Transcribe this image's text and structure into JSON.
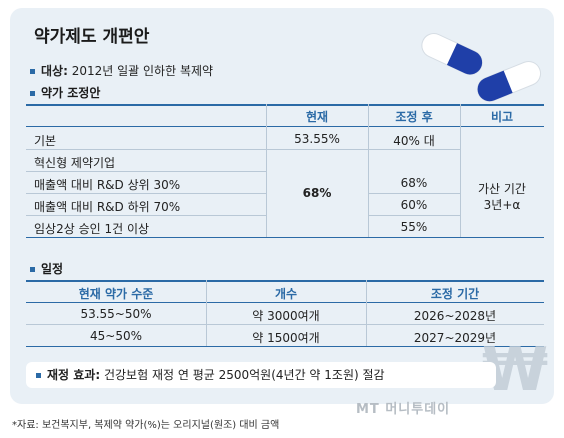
{
  "title": "약가제도 개편안",
  "target": {
    "label": "대상:",
    "text": "2012년 일괄 인하한 복제약"
  },
  "adjust_section": "약가 조정안",
  "table1": {
    "headers": {
      "current": "현재",
      "after": "조정 후",
      "note": "비고"
    },
    "rows": [
      {
        "label": "기본",
        "current": "53.55%",
        "after": "40% 대"
      },
      {
        "label": "혁신형 제약기업",
        "current": "",
        "after": ""
      },
      {
        "label": "매출액 대비 R&D 상위 30%",
        "current": "",
        "after": "68%"
      },
      {
        "label": "매출액 대비 R&D 하위 70%",
        "current": "",
        "after": "60%"
      },
      {
        "label": "임상2상 승인 1건 이상",
        "current": "",
        "after": "55%"
      }
    ],
    "merged_current": "68%",
    "note_line1": "가산 기간",
    "note_line2": "3년+α"
  },
  "schedule_section": "일정",
  "table2": {
    "headers": {
      "level": "현재 약가 수준",
      "count": "개수",
      "period": "조정 기간"
    },
    "rows": [
      {
        "level": "53.55~50%",
        "count": "약 3000여개",
        "period": "2026~2028년"
      },
      {
        "level": "45~50%",
        "count": "약 1500여개",
        "period": "2027~2029년"
      }
    ]
  },
  "effect": {
    "label": "재정 효과:",
    "text": "건강보험 재정 연 평균 2500억원(4년간 약 1조원) 절감"
  },
  "source": "*자료: 보건복지부, 복제약 약가(%)는 오리지널(원조) 대비 금액",
  "watermark_logo": "MT 머니투데이",
  "colors": {
    "accent": "#2b6aa6",
    "card": "#e9f0f6"
  }
}
